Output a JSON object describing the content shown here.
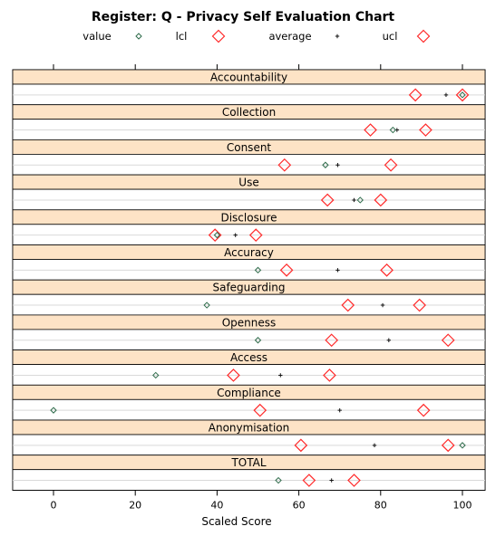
{
  "chart_data": {
    "type": "scatter",
    "title": "Register: Q - Privacy Self Evaluation Chart",
    "xlabel": "Scaled Score",
    "xlim": [
      -10,
      106
    ],
    "x_ticks": [
      0,
      20,
      40,
      60,
      80,
      100
    ],
    "grid": true,
    "legend_placement": "top",
    "legend": [
      {
        "key": "value",
        "label": "value",
        "marker": "small-diamond",
        "color": "#2e6b4a"
      },
      {
        "key": "lcl",
        "label": "lcl",
        "marker": "large-diamond",
        "color": "#ff2a2a"
      },
      {
        "key": "average",
        "label": "average",
        "marker": "plus",
        "color": "#111111"
      },
      {
        "key": "ucl",
        "label": "ucl",
        "marker": "large-diamond",
        "color": "#ff2a2a"
      }
    ],
    "strip_color": "#fde3c6",
    "panels": [
      {
        "label": "Accountability",
        "value": 100,
        "lcl": 88.5,
        "average": 96,
        "ucl": 100
      },
      {
        "label": "Collection",
        "value": 83,
        "lcl": 77.5,
        "average": 84,
        "ucl": 91
      },
      {
        "label": "Consent",
        "value": 66.5,
        "lcl": 56.5,
        "average": 69.5,
        "ucl": 82.5
      },
      {
        "label": "Use",
        "value": 75,
        "lcl": 67,
        "average": 73.5,
        "ucl": 80
      },
      {
        "label": "Disclosure",
        "value": 40,
        "lcl": 39.5,
        "average": 44.5,
        "ucl": 49.5
      },
      {
        "label": "Accuracy",
        "value": 50,
        "lcl": 57,
        "average": 69.5,
        "ucl": 81.5
      },
      {
        "label": "Safeguarding",
        "value": 37.5,
        "lcl": 72,
        "average": 80.5,
        "ucl": 89.5
      },
      {
        "label": "Openness",
        "value": 50,
        "lcl": 68,
        "average": 82,
        "ucl": 96.5
      },
      {
        "label": "Access",
        "value": 25,
        "lcl": 44,
        "average": 55.5,
        "ucl": 67.5
      },
      {
        "label": "Compliance",
        "value": 0,
        "lcl": 50.5,
        "average": 70,
        "ucl": 90.5
      },
      {
        "label": "Anonymisation",
        "value": 100,
        "lcl": 60.5,
        "average": 78.5,
        "ucl": 96.5
      },
      {
        "label": "TOTAL",
        "value": 55,
        "lcl": 62.5,
        "average": 68,
        "ucl": 73.5
      }
    ]
  }
}
